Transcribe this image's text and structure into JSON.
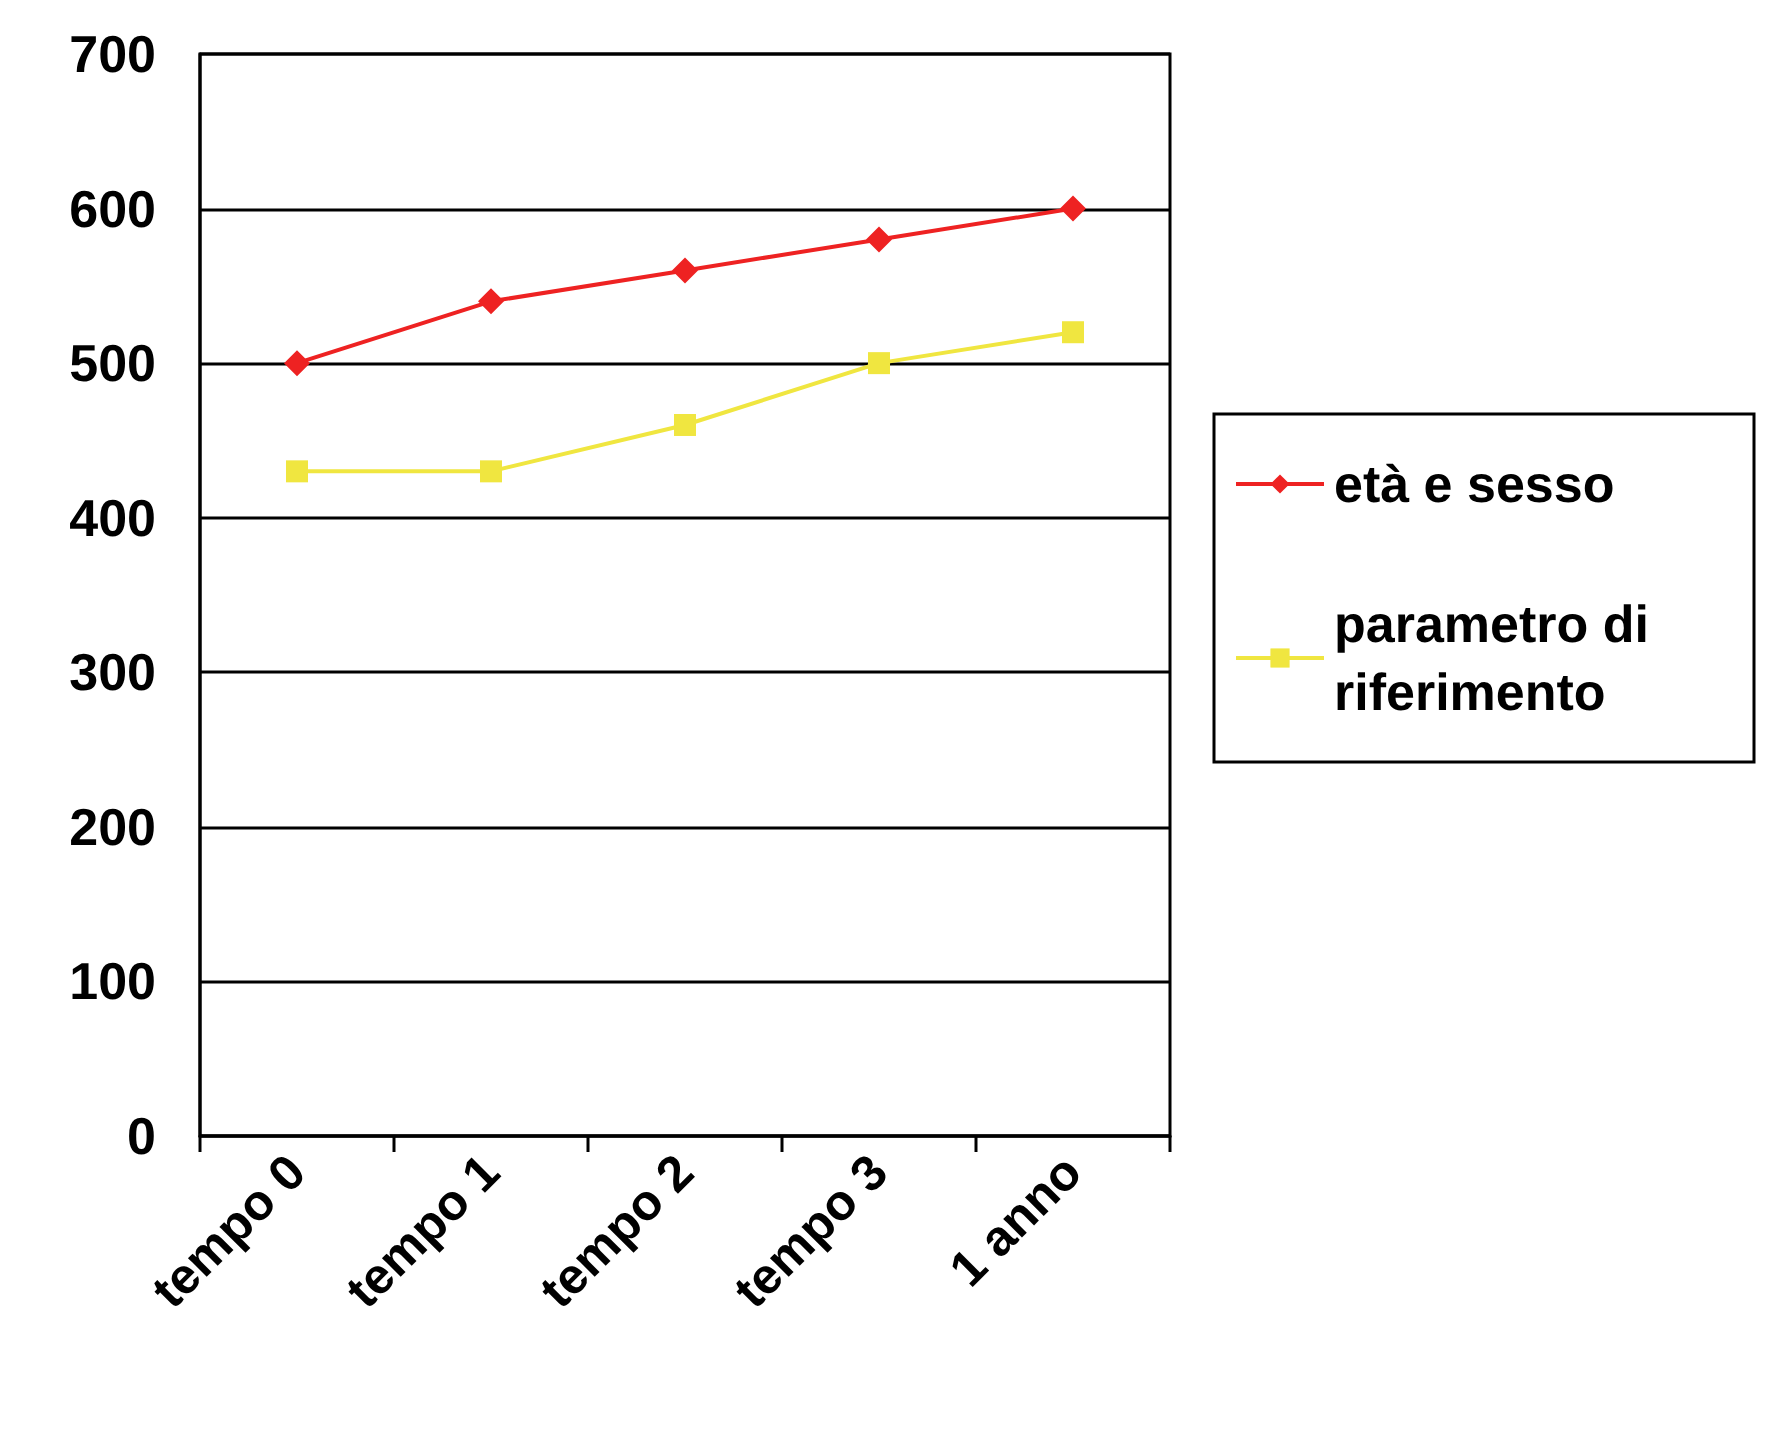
{
  "chart_data": {
    "type": "line",
    "categories": [
      "tempo 0",
      "tempo 1",
      "tempo 2",
      "tempo 3",
      "1 anno"
    ],
    "series": [
      {
        "name": "età e sesso",
        "color": "#ee2222",
        "marker": "diamond",
        "values": [
          500,
          540,
          560,
          580,
          600
        ]
      },
      {
        "name": "parametro di riferimento",
        "color": "#f0e640",
        "marker": "square",
        "values": [
          430,
          430,
          460,
          500,
          520
        ]
      }
    ],
    "ylim": [
      0,
      700
    ],
    "yticks": [
      0,
      100,
      200,
      300,
      400,
      500,
      600,
      700
    ],
    "grid": "y",
    "legend": "right"
  }
}
